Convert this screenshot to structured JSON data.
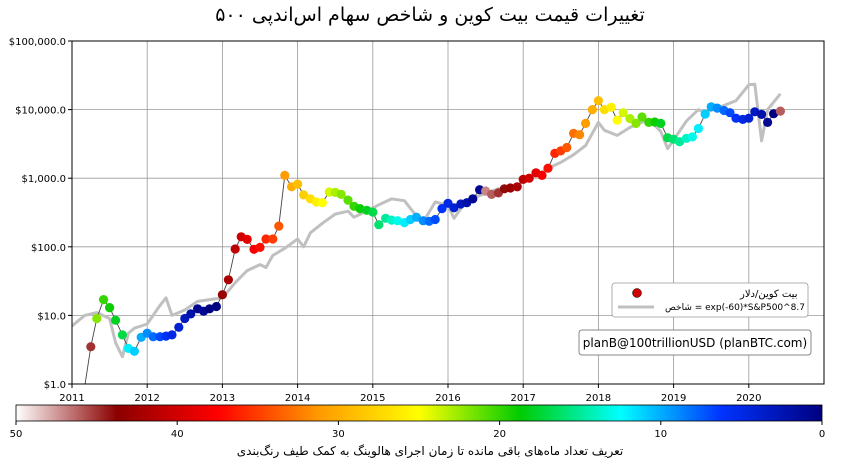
{
  "chart_data": {
    "type": "scatter",
    "title": "تغییرات قیمت بیت کوین و شاخص سهام اس‌اندپی ۵۰۰",
    "xlabel": "",
    "ylabel": "",
    "xlim": [
      2011.0,
      2021.0
    ],
    "ylim": [
      1,
      100000
    ],
    "yscale": "log",
    "grid": true,
    "x_ticks": [
      "2011",
      "2012",
      "2013",
      "2014",
      "2015",
      "2016",
      "2017",
      "2018",
      "2019",
      "2020"
    ],
    "y_ticks": [
      "$1.0",
      "$10.0",
      "$100.0",
      "$1,000.0",
      "$10,000.0",
      "$100,000.0"
    ],
    "legend_position": "lower-right",
    "legend": {
      "price_label": "بیت کوین/دلار",
      "index_label": "شاخص = exp(-60)*S&P500^8.7"
    },
    "annotation": "planB@100trillionUSD (planBTC.com)",
    "colorbar": {
      "label": "تعریف تعداد ماه‌های باقی مانده تا زمان اجرای هالوینگ به کمک طیف رنگ‌بندی",
      "ticks": [
        "50",
        "40",
        "30",
        "20",
        "10",
        "0"
      ],
      "min": 0,
      "max": 50,
      "colormap": [
        "#ffffff",
        "#8b0000",
        "#ff0000",
        "#ff9900",
        "#ffff00",
        "#00cc00",
        "#00ffff",
        "#0033ff",
        "#000080"
      ]
    },
    "series": [
      {
        "name": "بیت کوین/دلار",
        "kind": "points",
        "color_by": "months_to_halving",
        "x": [
          2011.25,
          2011.33,
          2011.42,
          2011.5,
          2011.58,
          2011.67,
          2011.75,
          2011.83,
          2011.92,
          2012.0,
          2012.08,
          2012.17,
          2012.25,
          2012.33,
          2012.42,
          2012.5,
          2012.58,
          2012.67,
          2012.75,
          2012.83,
          2012.92,
          2013.0,
          2013.08,
          2013.17,
          2013.25,
          2013.33,
          2013.42,
          2013.5,
          2013.58,
          2013.67,
          2013.75,
          2013.83,
          2013.92,
          2014.0,
          2014.08,
          2014.17,
          2014.25,
          2014.33,
          2014.42,
          2014.5,
          2014.58,
          2014.67,
          2014.75,
          2014.83,
          2014.92,
          2015.0,
          2015.08,
          2015.17,
          2015.25,
          2015.33,
          2015.42,
          2015.5,
          2015.58,
          2015.67,
          2015.75,
          2015.83,
          2015.92,
          2016.0,
          2016.08,
          2016.17,
          2016.25,
          2016.33,
          2016.42,
          2016.5,
          2016.58,
          2016.67,
          2016.75,
          2016.83,
          2016.92,
          2017.0,
          2017.08,
          2017.17,
          2017.25,
          2017.33,
          2017.42,
          2017.5,
          2017.58,
          2017.67,
          2017.75,
          2017.83,
          2017.92,
          2018.0,
          2018.08,
          2018.17,
          2018.25,
          2018.33,
          2018.42,
          2018.5,
          2018.58,
          2018.67,
          2018.75,
          2018.83,
          2018.92,
          2019.0,
          2019.08,
          2019.17,
          2019.25,
          2019.33,
          2019.42,
          2019.5,
          2019.58,
          2019.67,
          2019.75,
          2019.83,
          2019.92,
          2020.0,
          2020.08,
          2020.17,
          2020.25,
          2020.33,
          2020.42
        ],
        "y": [
          3.5,
          9,
          17,
          13,
          8.5,
          5.2,
          3.3,
          3.0,
          4.8,
          5.5,
          4.9,
          4.9,
          5.0,
          5.2,
          6.7,
          9,
          10.5,
          12.5,
          11.5,
          12.5,
          13.5,
          20,
          33,
          93,
          140,
          128,
          92,
          98,
          130,
          130,
          200,
          1100,
          750,
          820,
          570,
          500,
          450,
          440,
          630,
          620,
          580,
          480,
          390,
          360,
          340,
          320,
          210,
          260,
          245,
          240,
          225,
          250,
          270,
          240,
          235,
          250,
          360,
          430,
          370,
          420,
          440,
          500,
          680,
          650,
          580,
          610,
          700,
          720,
          750,
          960,
          1000,
          1200,
          1100,
          1400,
          2300,
          2500,
          2800,
          4500,
          4300,
          6300,
          10000,
          13500,
          10000,
          10800,
          7000,
          9000,
          7400,
          6300,
          7800,
          6500,
          6600,
          6300,
          3900,
          3700,
          3400,
          3800,
          4000,
          5300,
          8600,
          11000,
          10500,
          9700,
          9000,
          7500,
          7200,
          7500,
          9300,
          8500,
          6500,
          8700,
          9500
        ],
        "months_to_halving": [
          45,
          22,
          20,
          19,
          18,
          17,
          12,
          11,
          10,
          9,
          8,
          7,
          6,
          5,
          4,
          3,
          2,
          1,
          1,
          0,
          0,
          43,
          42,
          41,
          40,
          39,
          38,
          37,
          36,
          35,
          34,
          31,
          30,
          29,
          28,
          27,
          26,
          25,
          24,
          23,
          22,
          21,
          20,
          19,
          18,
          17,
          16,
          15,
          14,
          13,
          12,
          11,
          10,
          9,
          8,
          7,
          6,
          5,
          4,
          3,
          2,
          1,
          1,
          47,
          46,
          45,
          44,
          43,
          42,
          41,
          40,
          39,
          38,
          37,
          36,
          35,
          34,
          33,
          32,
          31,
          30,
          29,
          27,
          26,
          25,
          24,
          23,
          22,
          21,
          20,
          19,
          18,
          17,
          16,
          15,
          14,
          13,
          12,
          11,
          10,
          9,
          8,
          7,
          6,
          5,
          4,
          3,
          2,
          1,
          0,
          46
        ]
      },
      {
        "name": "شاخص = exp(-60)*S&P500^8.7",
        "kind": "line",
        "color": "#c0c0c0",
        "x": [
          2011.0,
          2011.17,
          2011.33,
          2011.5,
          2011.58,
          2011.67,
          2011.75,
          2011.83,
          2012.0,
          2012.17,
          2012.25,
          2012.33,
          2012.5,
          2012.67,
          2012.83,
          2013.0,
          2013.17,
          2013.33,
          2013.5,
          2013.58,
          2013.67,
          2013.83,
          2014.0,
          2014.08,
          2014.17,
          2014.33,
          2014.5,
          2014.67,
          2014.75,
          2014.92,
          2015.08,
          2015.25,
          2015.42,
          2015.58,
          2015.67,
          2015.83,
          2016.0,
          2016.08,
          2016.25,
          2016.5,
          2016.67,
          2016.83,
          2017.0,
          2017.17,
          2017.33,
          2017.5,
          2017.67,
          2017.83,
          2018.0,
          2018.08,
          2018.25,
          2018.42,
          2018.67,
          2018.83,
          2018.92,
          2019.0,
          2019.17,
          2019.33,
          2019.42,
          2019.58,
          2019.83,
          2020.0,
          2020.08,
          2020.17,
          2020.25,
          2020.42
        ],
        "y": [
          7,
          10,
          11,
          9,
          4,
          2.5,
          5.5,
          6.5,
          7.5,
          14,
          18,
          10,
          12,
          16,
          17,
          18,
          30,
          45,
          55,
          50,
          75,
          95,
          130,
          100,
          160,
          220,
          300,
          330,
          270,
          330,
          410,
          500,
          470,
          280,
          230,
          450,
          400,
          260,
          480,
          600,
          700,
          680,
          900,
          1100,
          1400,
          1700,
          2200,
          3000,
          6500,
          5000,
          4200,
          5500,
          7200,
          4800,
          2700,
          3600,
          6800,
          10000,
          9000,
          10500,
          13500,
          23000,
          23500,
          3500,
          10000,
          17000
        ]
      }
    ]
  }
}
